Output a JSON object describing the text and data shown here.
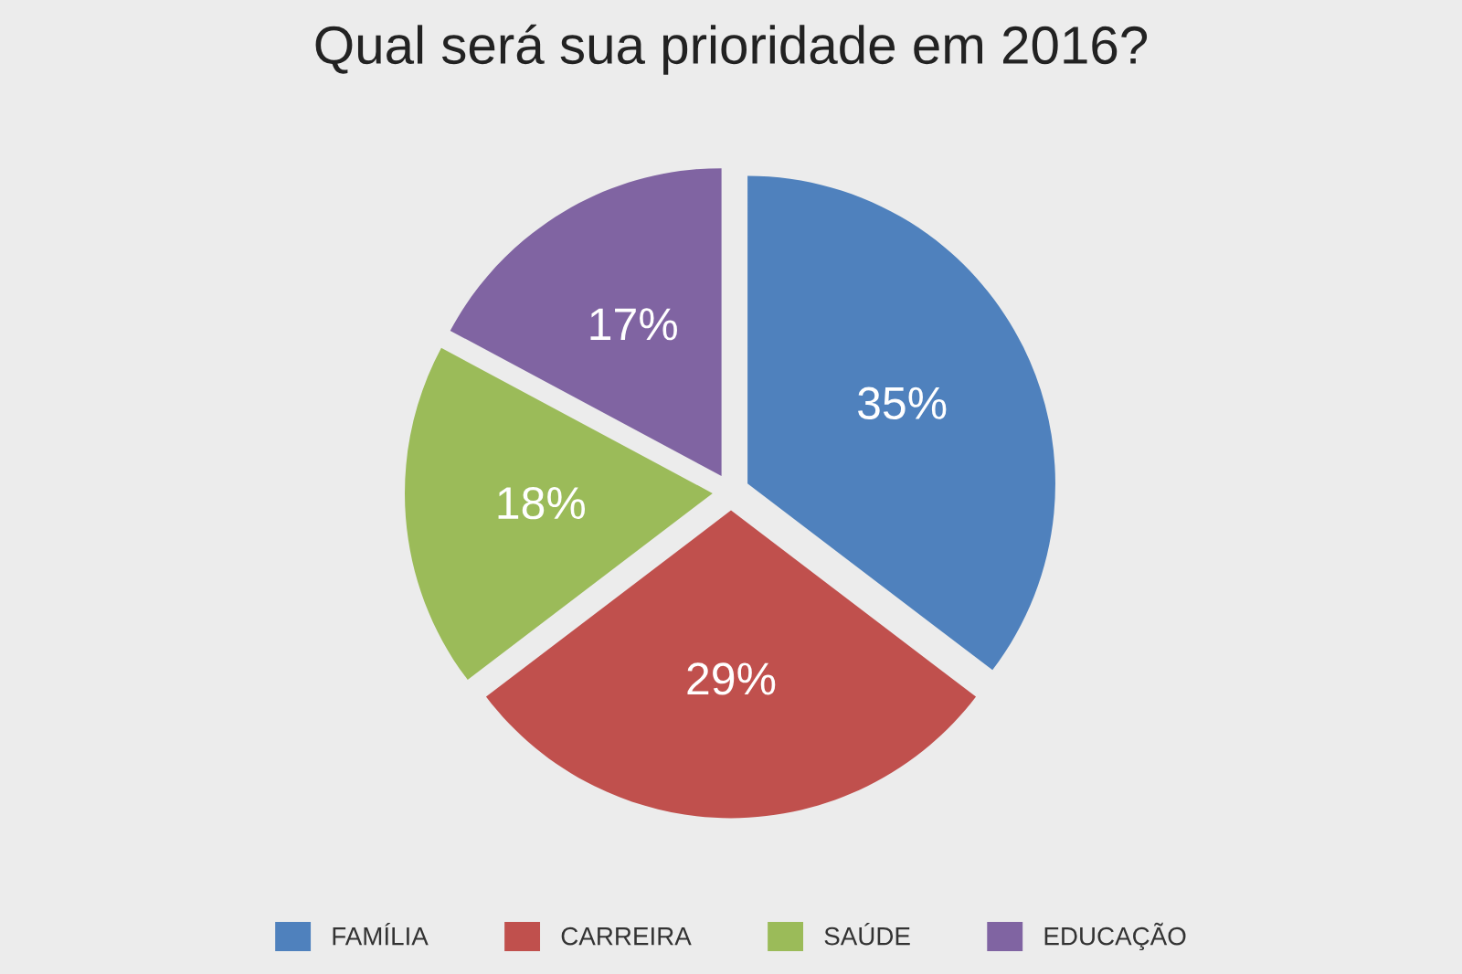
{
  "chart_data": {
    "type": "pie",
    "title": "Qual será sua prioridade em 2016?",
    "categories": [
      "FAMÍLIA",
      "CARREIRA",
      "SAÚDE",
      "EDUCAÇÃO"
    ],
    "values": [
      35,
      29,
      18,
      17
    ],
    "value_labels": [
      "35%",
      "29%",
      "18%",
      "17%"
    ],
    "colors": [
      "#4f81bd",
      "#c0504d",
      "#9bbb59",
      "#8064a2"
    ],
    "legend": "bottom"
  }
}
